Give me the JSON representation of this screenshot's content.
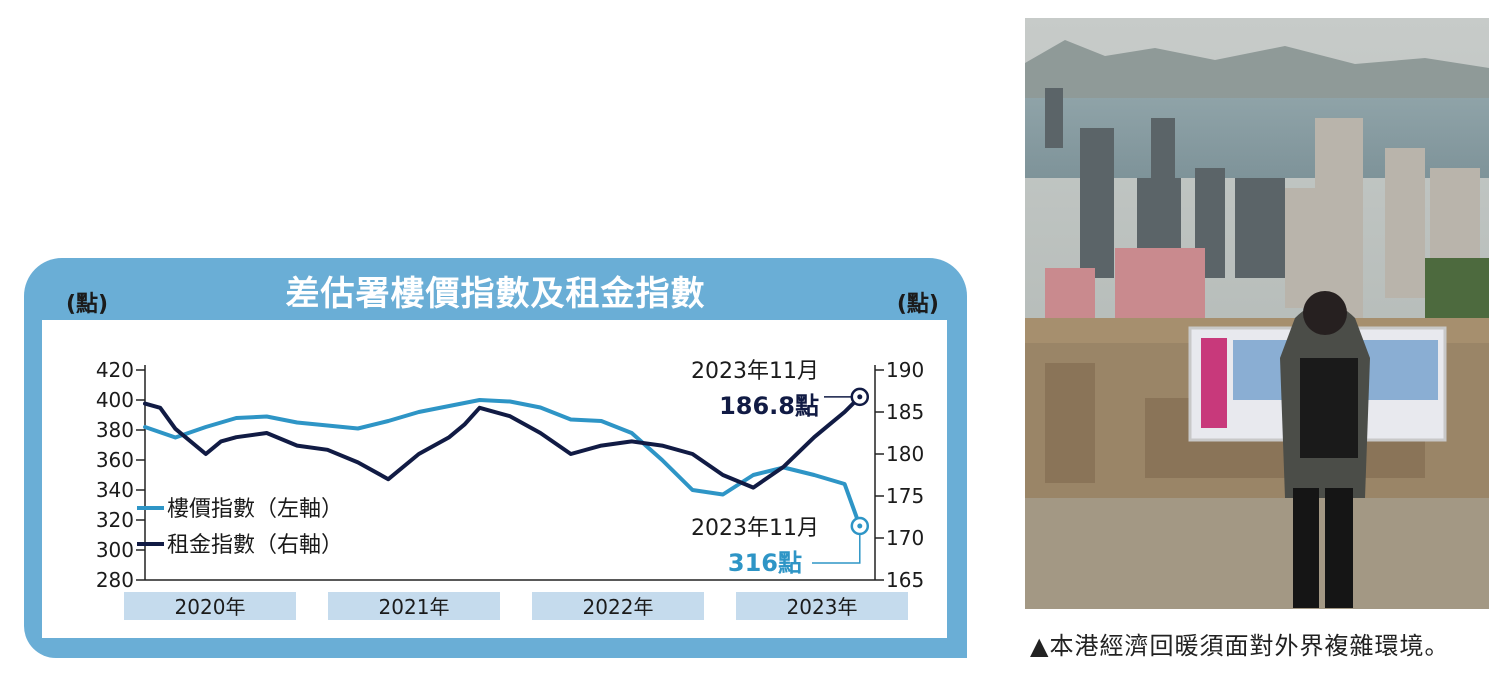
{
  "chart_data": {
    "type": "line",
    "title": "差估署樓價指數及租金指數",
    "yunit_left": "(點)",
    "yunit_right": "(點)",
    "ylim_left": [
      280,
      420
    ],
    "ylim_right": [
      165,
      190
    ],
    "yticks_left": [
      "420",
      "400",
      "380",
      "360",
      "340",
      "320",
      "300",
      "280"
    ],
    "yticks_right": [
      "190",
      "185",
      "180",
      "175",
      "170",
      "165"
    ],
    "xlim": [
      0,
      48
    ],
    "year_labels": [
      "2020年",
      "2021年",
      "2022年",
      "2023年"
    ],
    "series": [
      {
        "name": "樓價指數（左軸）",
        "axis": "left",
        "color": "#2e95c6",
        "x": [
          0,
          2,
          4,
          6,
          8,
          10,
          12,
          14,
          16,
          18,
          20,
          22,
          24,
          26,
          28,
          30,
          32,
          34,
          36,
          38,
          40,
          42,
          44,
          46,
          47
        ],
        "y": [
          382,
          375,
          382,
          388,
          389,
          385,
          383,
          381,
          386,
          392,
          396,
          400,
          399,
          395,
          387,
          386,
          378,
          360,
          340,
          337,
          350,
          355,
          350,
          344,
          316
        ]
      },
      {
        "name": "租金指數（右軸）",
        "axis": "right",
        "color": "#111b44",
        "x": [
          0,
          1,
          2,
          4,
          5,
          6,
          8,
          10,
          12,
          14,
          16,
          18,
          20,
          21,
          22,
          24,
          26,
          28,
          30,
          32,
          34,
          36,
          38,
          40,
          42,
          44,
          45,
          46,
          47
        ],
        "y": [
          186,
          185.5,
          183,
          180,
          181.5,
          182,
          182.5,
          181,
          180.5,
          179,
          177,
          180,
          182,
          183.5,
          185.5,
          184.5,
          182.5,
          180,
          181,
          181.5,
          181,
          180,
          177.5,
          176,
          178.5,
          182,
          183.5,
          185,
          186.8
        ]
      }
    ],
    "annotations": [
      {
        "date": "2023年11月",
        "value": "186.8點",
        "series": "租金指數（右軸）"
      },
      {
        "date": "2023年11月",
        "value": "316點",
        "series": "樓價指數（左軸）"
      }
    ]
  },
  "caption": "▲本港經濟回暖須面對外界複雜環境。"
}
